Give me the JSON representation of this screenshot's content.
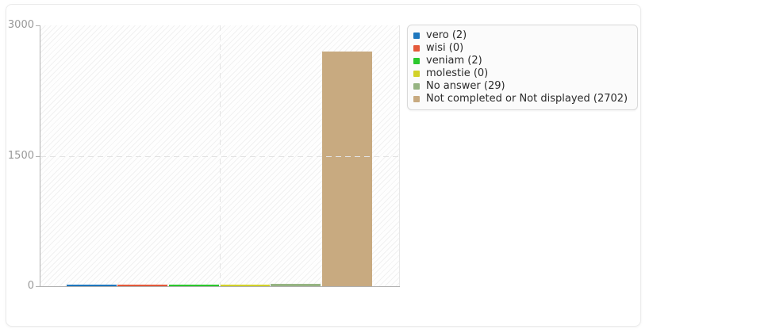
{
  "chart_data": {
    "type": "bar",
    "title": "",
    "xlabel": "",
    "ylabel": "",
    "categories": [
      "vero",
      "wisi",
      "veniam",
      "molestie",
      "No answer",
      "Not completed or Not displayed"
    ],
    "values": [
      2,
      0,
      2,
      0,
      29,
      2702
    ],
    "colors": [
      "#1e77be",
      "#e4593a",
      "#2bc82d",
      "#d2d228",
      "#96b482",
      "#c8aa80"
    ],
    "legend_labels": [
      "vero (2)",
      "wisi (0)",
      "veniam (2)",
      "molestie (0)",
      "No answer (29)",
      "Not completed or Not displayed (2702)"
    ],
    "ylim": [
      0,
      3000
    ],
    "ytick_values": [
      0,
      1500,
      3000
    ],
    "ytick_labels": [
      "0",
      "1500",
      "3000"
    ],
    "legend_position": "right",
    "grid": {
      "horizontal_dashed_at": [
        1500
      ],
      "vertical_dashed_center": true,
      "background_hatch": true
    }
  }
}
